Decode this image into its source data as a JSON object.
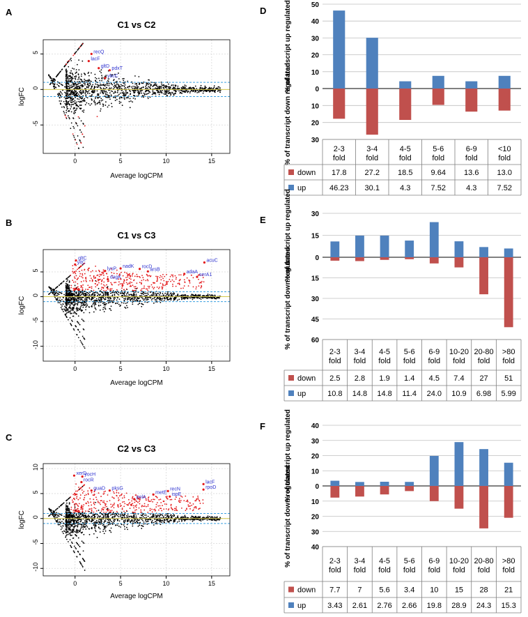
{
  "panels": [
    {
      "letter": "A",
      "title": "C1 vs C2",
      "ylabel": "logFC",
      "xlabel": "Average logCPM",
      "xticks": [
        "0",
        "5",
        "10",
        "15"
      ],
      "yticks": [
        "5",
        "0",
        "-5"
      ],
      "genes": [
        {
          "name": "recQ",
          "x": 1.8,
          "y": 5.0
        },
        {
          "name": "lacF",
          "x": 1.5,
          "y": 4.0
        },
        {
          "name": "gltD",
          "x": 2.6,
          "y": 3.0
        },
        {
          "name": "pdxT",
          "x": 3.8,
          "y": 2.7
        },
        {
          "name": "ybcC",
          "x": 3.3,
          "y": 1.6
        }
      ]
    },
    {
      "letter": "B",
      "title": "C1 vs C3",
      "ylabel": "logFC",
      "xlabel": "Average logCPM",
      "xticks": [
        "0",
        "5",
        "10",
        "15"
      ],
      "yticks": [
        "5",
        "0",
        "-5",
        "-10"
      ],
      "genes": [
        {
          "name": "gltC",
          "x": 0.1,
          "y": 7.3
        },
        {
          "name": "yitC",
          "x": 0.0,
          "y": 6.5
        },
        {
          "name": "lysP",
          "x": 3.3,
          "y": 5.2
        },
        {
          "name": "nadK",
          "x": 5.0,
          "y": 5.7
        },
        {
          "name": "rocD",
          "x": 7.1,
          "y": 5.6
        },
        {
          "name": "arsB",
          "x": 8.0,
          "y": 5.1
        },
        {
          "name": "dagK",
          "x": 3.6,
          "y": 3.5
        },
        {
          "name": "adaA",
          "x": 12.0,
          "y": 4.6
        },
        {
          "name": "serA1",
          "x": 13.4,
          "y": 4.0
        },
        {
          "name": "acuC",
          "x": 14.2,
          "y": 6.9
        }
      ]
    },
    {
      "letter": "C",
      "title": "C2 vs C3",
      "ylabel": "logFC",
      "xlabel": "Average logCPM",
      "xticks": [
        "0",
        "5",
        "10",
        "15"
      ],
      "yticks": [
        "10",
        "5",
        "0",
        "-5",
        "-10"
      ],
      "genes": [
        {
          "name": "xerD",
          "x": -0.1,
          "y": 8.6
        },
        {
          "name": "yocH",
          "x": 0.8,
          "y": 8.4
        },
        {
          "name": "rocR",
          "x": 0.7,
          "y": 7.3
        },
        {
          "name": "guaD",
          "x": 1.8,
          "y": 5.6
        },
        {
          "name": "pksG",
          "x": 3.8,
          "y": 5.6
        },
        {
          "name": "polA",
          "x": 6.5,
          "y": 3.9
        },
        {
          "name": "metE",
          "x": 8.6,
          "y": 4.8
        },
        {
          "name": "recN",
          "x": 10.2,
          "y": 5.5
        },
        {
          "name": "ispE",
          "x": 10.4,
          "y": 4.4
        },
        {
          "name": "lacF",
          "x": 14.1,
          "y": 6.9
        },
        {
          "name": "rpoD",
          "x": 14.1,
          "y": 5.8
        }
      ]
    }
  ],
  "chart_data": [
    {
      "panel": "D",
      "type": "bar",
      "ylabel_up": "% of transcript up regulated",
      "ylabel_down": "% of transcript down regulated",
      "categories": [
        "2-3 fold",
        "3-4 fold",
        "4-5 fold",
        "5-6 fold",
        "6-9 fold",
        "<10 fold"
      ],
      "series": [
        {
          "name": "down",
          "color": "#c0504d",
          "values": [
            17.8,
            27.2,
            18.5,
            9.64,
            13.6,
            13.0
          ],
          "labels": [
            "17.8",
            "27.2",
            "18.5",
            "9.64",
            "13.6",
            "13.0"
          ]
        },
        {
          "name": "up",
          "color": "#4f81bd",
          "values": [
            46.23,
            30.1,
            4.3,
            7.52,
            4.3,
            7.52
          ],
          "labels": [
            "46.23",
            "30.1",
            "4.3",
            "7.52",
            "4.3",
            "7.52"
          ]
        }
      ],
      "up_max": 50,
      "down_max": 30,
      "up_ticks": [
        "50",
        "40",
        "30",
        "20",
        "10",
        "0"
      ],
      "down_ticks": [
        "10",
        "20",
        "30"
      ]
    },
    {
      "panel": "E",
      "type": "bar",
      "ylabel_up": "% of transcript up regulated",
      "ylabel_down": "% of transcript down regulated",
      "categories": [
        "2-3 fold",
        "3-4 fold",
        "4-5 fold",
        "5-6 fold",
        "6-9 fold",
        "10-20 fold",
        "20-80 fold",
        ">80 fold"
      ],
      "series": [
        {
          "name": "down",
          "color": "#c0504d",
          "values": [
            2.5,
            2.8,
            1.9,
            1.4,
            4.5,
            7.4,
            27,
            51
          ],
          "labels": [
            "2.5",
            "2.8",
            "1.9",
            "1.4",
            "4.5",
            "7.4",
            "27",
            "51"
          ]
        },
        {
          "name": "up",
          "color": "#4f81bd",
          "values": [
            10.8,
            14.8,
            14.8,
            11.4,
            24.0,
            10.9,
            6.98,
            5.99
          ],
          "labels": [
            "10.8",
            "14.8",
            "14.8",
            "11.4",
            "24.0",
            "10.9",
            "6.98",
            "5.99"
          ]
        }
      ],
      "up_max": 30,
      "down_max": 60,
      "up_ticks": [
        "30",
        "15",
        "0"
      ],
      "down_ticks": [
        "15",
        "30",
        "45",
        "60"
      ]
    },
    {
      "panel": "F",
      "type": "bar",
      "ylabel_up": "% of transcript up regulated",
      "ylabel_down": "% of transcript down regulated",
      "categories": [
        "2-3 fold",
        "3-4 fold",
        "4-5 fold",
        "5-6 fold",
        "6-9 fold",
        "10-20 fold",
        "20-80 fold",
        ">80 fold"
      ],
      "series": [
        {
          "name": "down",
          "color": "#c0504d",
          "values": [
            7.7,
            7,
            5.6,
            3.4,
            10,
            15,
            28,
            21
          ],
          "labels": [
            "7.7",
            "7",
            "5.6",
            "3.4",
            "10",
            "15",
            "28",
            "21"
          ]
        },
        {
          "name": "up",
          "color": "#4f81bd",
          "values": [
            3.43,
            2.61,
            2.76,
            2.66,
            19.8,
            28.9,
            24.3,
            15.3
          ],
          "labels": [
            "3.43",
            "2.61",
            "2.76",
            "2.66",
            "19.8",
            "28.9",
            "24.3",
            "15.3"
          ]
        }
      ],
      "up_max": 40,
      "down_max": 40,
      "up_ticks": [
        "40",
        "30",
        "20",
        "10",
        "0"
      ],
      "down_ticks": [
        "10",
        "20",
        "30",
        "40"
      ]
    }
  ]
}
